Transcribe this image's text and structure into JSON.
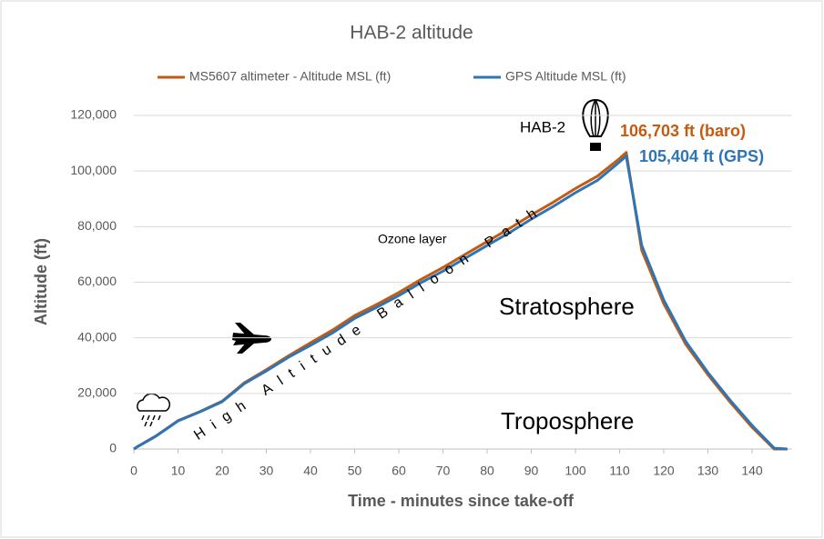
{
  "chart_data": {
    "type": "line",
    "title": "HAB-2 altitude",
    "x_label": "Time - minutes since take-off",
    "y_label": "Altitude (ft)",
    "xlim": [
      0,
      149
    ],
    "ylim": [
      0,
      120000
    ],
    "xticks": [
      0,
      10,
      20,
      30,
      40,
      50,
      60,
      70,
      80,
      90,
      100,
      110,
      120,
      130,
      140
    ],
    "yticks": [
      0,
      {
        "value": 20000,
        "label": "20,000"
      },
      {
        "value": 40000,
        "label": "40,000"
      },
      {
        "value": 60000,
        "label": "60,000"
      },
      {
        "value": 80000,
        "label": "80,000"
      },
      {
        "value": 100000,
        "label": "100,000"
      },
      {
        "value": 120000,
        "label": "120,000"
      }
    ],
    "grid": true,
    "legend": "top",
    "series": [
      {
        "name": "MS5607 altimeter - Altitude MSL (ft)",
        "color": "#c55a11",
        "x": [
          0,
          1,
          5,
          10,
          15,
          20,
          25,
          30,
          35,
          40,
          45,
          50,
          55,
          60,
          65,
          70,
          75,
          80,
          85,
          90,
          95,
          100,
          105,
          110,
          111.5,
          115,
          120,
          125,
          130,
          135,
          140,
          145,
          148
        ],
        "values": [
          0,
          1000,
          4700,
          10200,
          13500,
          17200,
          23800,
          28500,
          33500,
          38200,
          42800,
          48000,
          52000,
          56300,
          61000,
          65300,
          70000,
          74600,
          79300,
          84200,
          88800,
          93700,
          98200,
          104500,
          106703,
          71500,
          52300,
          37600,
          26700,
          16900,
          7800,
          0,
          0
        ]
      },
      {
        "name": "GPS Altitude MSL (ft)",
        "color": "#2e75b6",
        "x": [
          0,
          1,
          5,
          10,
          15,
          20,
          25,
          30,
          35,
          40,
          45,
          50,
          55,
          60,
          65,
          70,
          75,
          80,
          85,
          90,
          95,
          100,
          105,
          110,
          111.5,
          115,
          120,
          125,
          130,
          135,
          140,
          145,
          148
        ],
        "values": [
          0,
          1000,
          4600,
          10100,
          13400,
          17000,
          23500,
          28100,
          33000,
          37300,
          41800,
          47000,
          51000,
          55200,
          59800,
          64000,
          68600,
          73200,
          77800,
          82700,
          87300,
          92200,
          96700,
          103300,
          105404,
          73200,
          53600,
          38600,
          27500,
          17600,
          8500,
          300,
          0
        ]
      }
    ],
    "annotations": [
      "HAB-2",
      "106,703 ft (baro)",
      "105,404 ft (GPS)",
      "Ozone layer",
      "High Altitude Balloon Path",
      "Stratosphere",
      "Troposphere"
    ]
  }
}
